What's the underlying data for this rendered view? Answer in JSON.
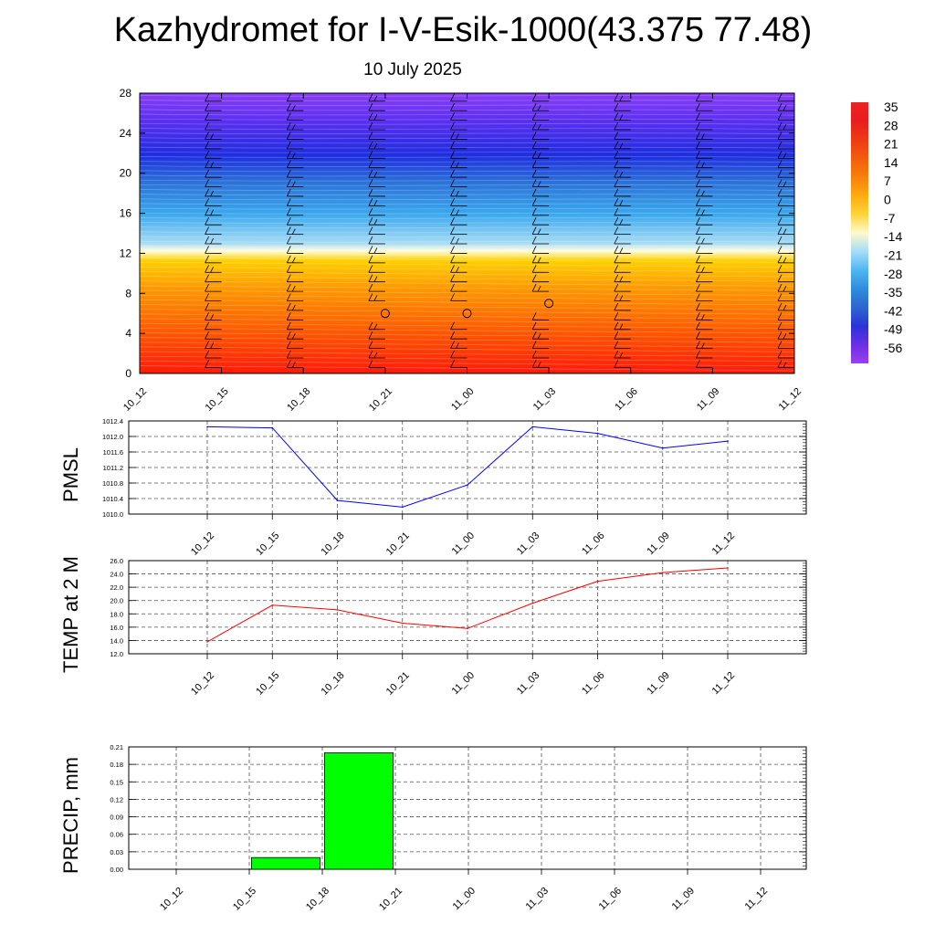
{
  "title": "Kazhydromet for I-V-Esik-1000(43.375 77.48)",
  "subtitle": "10 July 2025",
  "colors": {
    "pmsl_line": "#0000ff",
    "temp_line": "#ff0000",
    "precip_bar": "#00ff00"
  },
  "chart_data": [
    {
      "type": "heatmap",
      "title": "Kazhydromet for I-V-Esik-1000(43.375 77.48)",
      "subtitle": "10 July 2025",
      "x_ticks": [
        "10_12",
        "10_15",
        "10_18",
        "10_21",
        "11_00",
        "11_03",
        "11_06",
        "11_09",
        "11_12"
      ],
      "y_ticks": [
        "0",
        "4",
        "8",
        "12",
        "16",
        "20",
        "24",
        "28"
      ],
      "ylim": [
        0,
        28
      ],
      "colorbar_labels": [
        "35",
        "28",
        "21",
        "14",
        "7",
        "0",
        "-7",
        "-14",
        "-21",
        "-28",
        "-35",
        "-42",
        "-49",
        "-56"
      ],
      "colorbar_colors": [
        "#ee2222",
        "#e91d1d",
        "#ee3a12",
        "#f25c0d",
        "#f7800a",
        "#fcaa10",
        "#fdd438",
        "#fefacc",
        "#a6dcf8",
        "#4fb6f1",
        "#2f8ddd",
        "#2e66cf",
        "#2b33d6",
        "#6c2fe5",
        "#9b3ff0"
      ],
      "wind_barbs": "present",
      "calm_markers": [
        {
          "x": "10_21",
          "y": 6
        },
        {
          "x": "11_00",
          "y": 6
        },
        {
          "x": "11_03",
          "y": 7
        }
      ],
      "surface": {
        "freezing_level_start": 12.6,
        "freezing_level_end": 11.9
      }
    },
    {
      "type": "line",
      "ylabel": "PMSL",
      "x": [
        "10_12",
        "10_15",
        "10_18",
        "10_21",
        "11_00",
        "11_03",
        "11_06",
        "11_09",
        "11_12"
      ],
      "y_ticks": [
        "1010.0",
        "1010.4",
        "1010.8",
        "1011.2",
        "1011.6",
        "1012.0",
        "1012.4"
      ],
      "ylim": [
        1010.0,
        1012.4
      ],
      "grid": true,
      "series": [
        {
          "values": [
            1012.25,
            1012.22,
            1010.35,
            1010.18,
            1010.75,
            1012.25,
            1012.08,
            1011.7,
            1011.88
          ]
        }
      ]
    },
    {
      "type": "line",
      "ylabel": "TEMP at 2 M",
      "x": [
        "10_12",
        "10_15",
        "10_18",
        "10_21",
        "11_00",
        "11_03",
        "11_06",
        "11_09",
        "11_12"
      ],
      "y_ticks": [
        "12.0",
        "14.0",
        "16.0",
        "18.0",
        "20.0",
        "22.0",
        "24.0",
        "26.0"
      ],
      "ylim": [
        12.0,
        26.0
      ],
      "grid": true,
      "series": [
        {
          "values": [
            13.8,
            19.3,
            18.6,
            16.6,
            15.8,
            19.6,
            22.9,
            24.2,
            24.9
          ]
        }
      ]
    },
    {
      "type": "bar",
      "ylabel": "PRECIP, mm",
      "categories": [
        "10_12",
        "10_15",
        "10_18",
        "10_21",
        "11_00",
        "11_03",
        "11_06",
        "11_09",
        "11_12"
      ],
      "y_ticks": [
        "0.00",
        "0.03",
        "0.06",
        "0.09",
        "0.12",
        "0.15",
        "0.18",
        "0.21"
      ],
      "ylim": [
        0,
        0.21
      ],
      "grid": true,
      "values": [
        0,
        0.02,
        0.2,
        0,
        0,
        0,
        0,
        0,
        0
      ]
    }
  ]
}
